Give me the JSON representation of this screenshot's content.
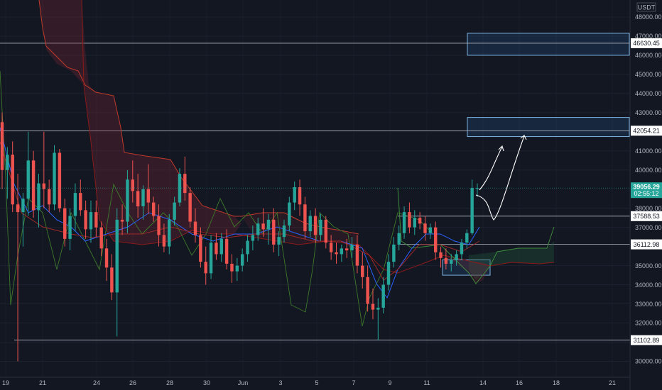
{
  "chart_data": {
    "type": "candlestick",
    "currency": "USDT",
    "ylim": [
      29500,
      48600
    ],
    "y_ticks": [
      48000,
      47000,
      46000,
      45000,
      44000,
      43000,
      42000,
      41000,
      40000,
      38000,
      37000,
      35000,
      34000,
      33000,
      32000,
      31000,
      30000
    ],
    "x_tick_labels": [
      "19",
      "21",
      "24",
      "26",
      "28",
      "30",
      "Jun",
      "3",
      "5",
      "7",
      "9",
      "11",
      "14",
      "16",
      "18",
      "21"
    ],
    "last_price": {
      "label": "39056.29",
      "countdown": "02:55:12",
      "value": 39056
    },
    "levels": [
      {
        "label": "46630.45",
        "value": 46630
      },
      {
        "label": "42054.21",
        "value": 42054
      },
      {
        "label": "37588.53",
        "value": 37588
      },
      {
        "label": "36112.98",
        "value": 36112
      },
      {
        "label": "31102.89",
        "value": 31103
      }
    ],
    "zones": [
      {
        "from": 46000,
        "to": 47150
      },
      {
        "from": 41750,
        "to": 42750
      },
      {
        "from": 34500,
        "to": 35300
      }
    ],
    "candles": [
      [
        42500,
        43000,
        39000,
        40000
      ],
      [
        40000,
        41200,
        38500,
        40800
      ],
      [
        40800,
        41500,
        37800,
        38200
      ],
      [
        38200,
        39800,
        30000,
        37800
      ],
      [
        37800,
        38800,
        36000,
        38500
      ],
      [
        38500,
        42000,
        37600,
        40500
      ],
      [
        40500,
        41000,
        37500,
        37900
      ],
      [
        37900,
        39800,
        37000,
        39300
      ],
      [
        39300,
        42000,
        38000,
        39000
      ],
      [
        39000,
        39500,
        37800,
        38200
      ],
      [
        38200,
        41300,
        37900,
        40900
      ],
      [
        40900,
        41100,
        37800,
        38000
      ],
      [
        38000,
        38500,
        36000,
        36400
      ],
      [
        36400,
        38000,
        35800,
        37600
      ],
      [
        37600,
        39300,
        36800,
        38800
      ],
      [
        38800,
        39500,
        37600,
        37900
      ],
      [
        37900,
        38400,
        36400,
        36900
      ],
      [
        36900,
        38400,
        36200,
        37800
      ],
      [
        37800,
        38400,
        36500,
        37000
      ],
      [
        37000,
        37300,
        35500,
        35900
      ],
      [
        35900,
        36400,
        34200,
        34900
      ],
      [
        34900,
        35600,
        33200,
        33600
      ],
      [
        33600,
        38000,
        31300,
        37400
      ],
      [
        37400,
        38200,
        36600,
        37300
      ],
      [
        37300,
        40000,
        36700,
        39500
      ],
      [
        39500,
        40500,
        38300,
        38900
      ],
      [
        38900,
        39800,
        37500,
        38100
      ],
      [
        38100,
        39200,
        37400,
        39000
      ],
      [
        39000,
        40300,
        37700,
        38300
      ],
      [
        38300,
        38600,
        37300,
        37600
      ],
      [
        37600,
        38200,
        36000,
        36600
      ],
      [
        36600,
        37200,
        35700,
        36000
      ],
      [
        36000,
        37700,
        35600,
        37400
      ],
      [
        37400,
        38600,
        37100,
        38300
      ],
      [
        38300,
        40100,
        38100,
        39800
      ],
      [
        39800,
        40700,
        38400,
        38800
      ],
      [
        38800,
        39100,
        37000,
        37300
      ],
      [
        37300,
        38000,
        36200,
        36600
      ],
      [
        36600,
        37000,
        34900,
        35200
      ],
      [
        35200,
        36000,
        34000,
        34600
      ],
      [
        34600,
        36600,
        34300,
        36200
      ],
      [
        36200,
        36700,
        35300,
        35600
      ],
      [
        35600,
        36700,
        35200,
        36400
      ],
      [
        36400,
        36900,
        34800,
        35100
      ],
      [
        35100,
        35600,
        34100,
        34700
      ],
      [
        34700,
        35400,
        34200,
        35000
      ],
      [
        35000,
        35900,
        34700,
        35600
      ],
      [
        35600,
        36600,
        35200,
        36300
      ],
      [
        36300,
        37100,
        35800,
        36600
      ],
      [
        36600,
        37500,
        36300,
        37200
      ],
      [
        37200,
        38000,
        36500,
        36900
      ],
      [
        36900,
        37700,
        36100,
        37400
      ],
      [
        37400,
        38000,
        35700,
        36100
      ],
      [
        36100,
        36800,
        35500,
        36500
      ],
      [
        36500,
        37400,
        36200,
        37100
      ],
      [
        37100,
        38600,
        36800,
        38300
      ],
      [
        38300,
        39400,
        37900,
        39100
      ],
      [
        39100,
        39500,
        37600,
        38200
      ],
      [
        38200,
        38600,
        36400,
        36800
      ],
      [
        36800,
        37900,
        36500,
        37600
      ],
      [
        37600,
        38000,
        36200,
        36600
      ],
      [
        36600,
        37700,
        36300,
        37400
      ],
      [
        37400,
        37600,
        35900,
        36200
      ],
      [
        36200,
        36600,
        35300,
        35700
      ],
      [
        35700,
        36200,
        35100,
        35600
      ],
      [
        35600,
        36100,
        35200,
        35900
      ],
      [
        35900,
        36400,
        35400,
        35800
      ],
      [
        35800,
        36500,
        35400,
        36100
      ],
      [
        36100,
        36600,
        34600,
        35000
      ],
      [
        35000,
        35700,
        33800,
        34400
      ],
      [
        34400,
        35000,
        32600,
        33000
      ],
      [
        33000,
        33800,
        32200,
        32700
      ],
      [
        32700,
        33300,
        31100,
        32800
      ],
      [
        32800,
        34400,
        32500,
        34000
      ],
      [
        34000,
        35600,
        33700,
        35200
      ],
      [
        35200,
        36500,
        34900,
        36100
      ],
      [
        36100,
        37100,
        35800,
        36700
      ],
      [
        36700,
        38100,
        36400,
        37800
      ],
      [
        37800,
        38300,
        36700,
        37000
      ],
      [
        37000,
        37900,
        36600,
        37500
      ],
      [
        37500,
        37800,
        36900,
        37200
      ],
      [
        37200,
        37600,
        36300,
        36700
      ],
      [
        36700,
        37200,
        36400,
        37000
      ],
      [
        37000,
        37300,
        35300,
        35700
      ],
      [
        35700,
        36000,
        34900,
        35400
      ],
      [
        35400,
        35900,
        34800,
        35100
      ],
      [
        35100,
        35600,
        34700,
        35300
      ],
      [
        35300,
        35800,
        35000,
        35600
      ],
      [
        35600,
        36400,
        35300,
        36200
      ],
      [
        36200,
        36900,
        35900,
        36700
      ],
      [
        36700,
        39500,
        36600,
        39056
      ],
      [
        39056,
        39300,
        38600,
        39056
      ]
    ]
  }
}
